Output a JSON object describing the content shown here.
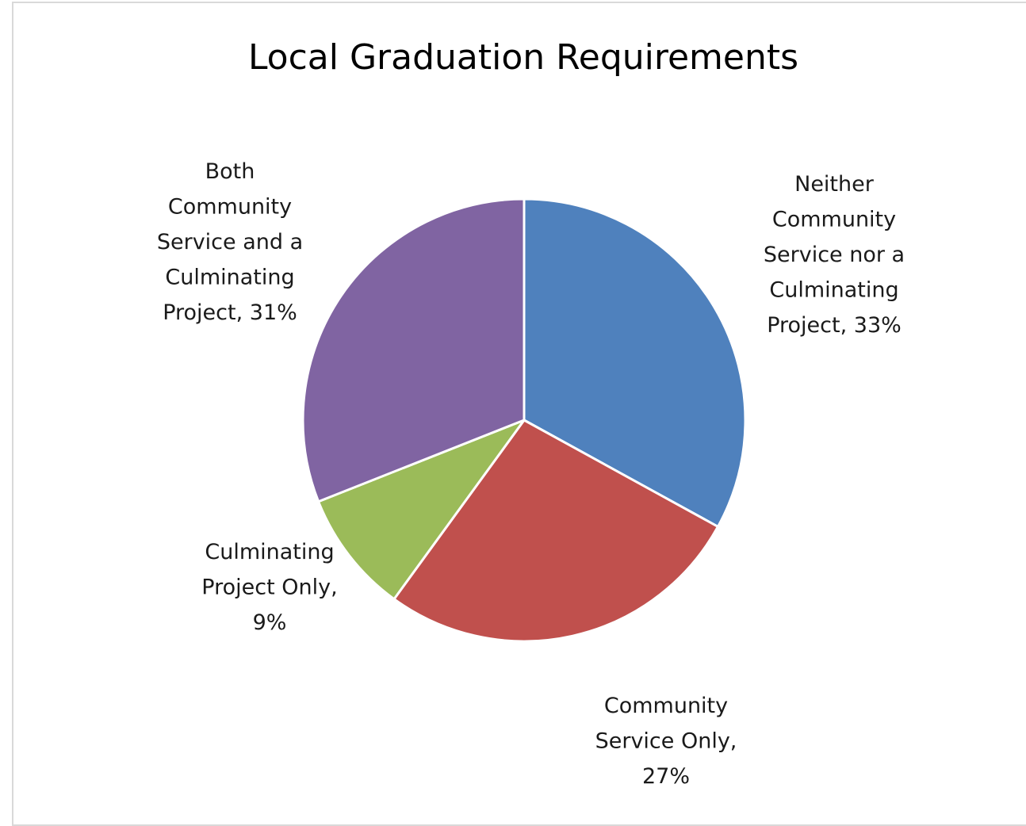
{
  "chart_data": {
    "type": "pie",
    "title": "Local Graduation Requirements",
    "start_angle_deg": 0,
    "direction": "clockwise",
    "slices": [
      {
        "label_lines": [
          "Neither",
          "Community",
          "Service nor a",
          "Culminating",
          "Project, 33%"
        ],
        "category": "Neither Community Service nor a Culminating Project",
        "value": 33,
        "color": "#4f81bd"
      },
      {
        "label_lines": [
          "Community",
          "Service Only,",
          "27%"
        ],
        "category": "Community Service Only",
        "value": 27,
        "color": "#c0504d"
      },
      {
        "label_lines": [
          "Culminating",
          "Project Only,",
          "9%"
        ],
        "category": "Culminating Project Only",
        "value": 9,
        "color": "#9bbb59"
      },
      {
        "label_lines": [
          "Both",
          "Community",
          "Service and a",
          "Culminating",
          "Project, 31%"
        ],
        "category": "Both Community Service and a Culminating Project",
        "value": 31,
        "color": "#8064a2"
      }
    ]
  }
}
